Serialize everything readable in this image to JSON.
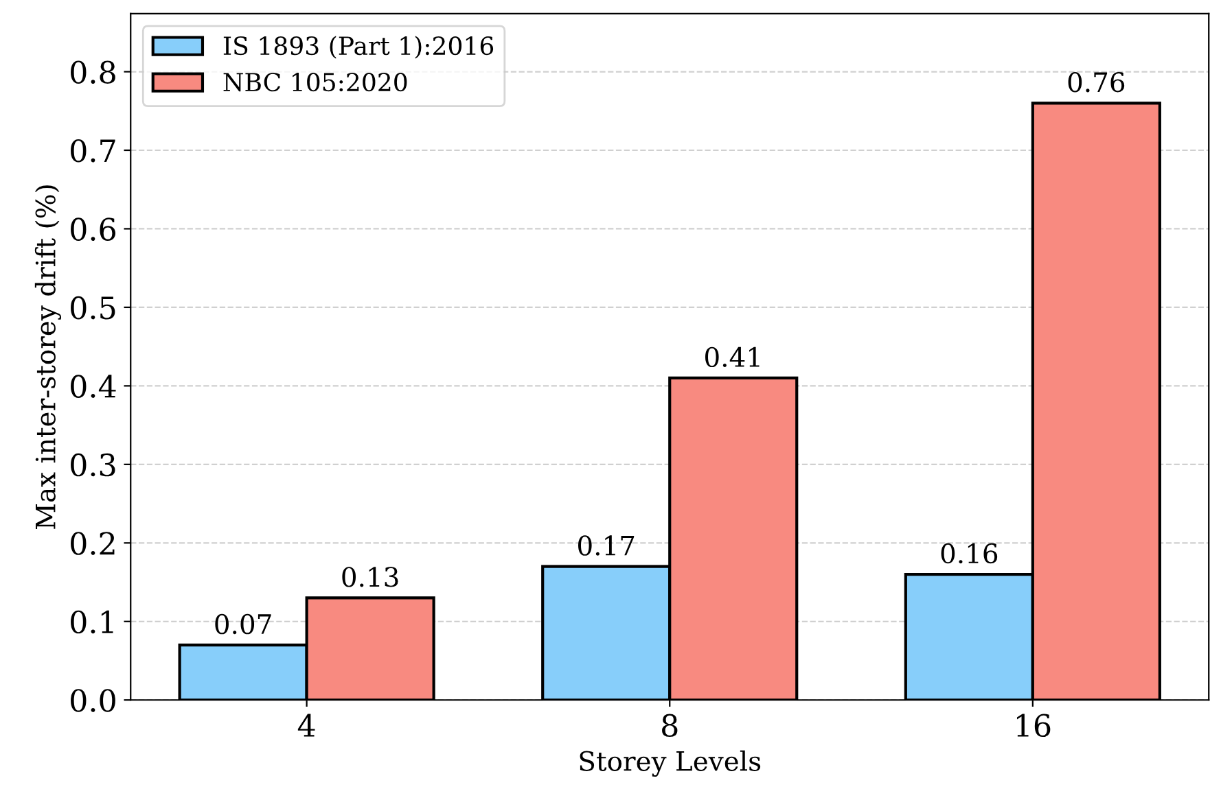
{
  "chart_data": {
    "type": "bar",
    "xlabel": "Storey Levels",
    "ylabel": "Max inter-storey drift (%)",
    "categories": [
      "4",
      "8",
      "16"
    ],
    "series": [
      {
        "name": "IS 1893 (Part 1):2016",
        "color": "#87cefa",
        "values": [
          0.07,
          0.17,
          0.16
        ]
      },
      {
        "name": "NBC 105:2020",
        "color": "#f88a80",
        "values": [
          0.13,
          0.41,
          0.76
        ]
      }
    ],
    "ylim": [
      0,
      0.874
    ],
    "yticks": [
      {
        "value": 0,
        "label": "0.0"
      },
      0.1,
      0.2,
      0.3,
      0.4,
      0.5,
      0.6,
      0.7,
      0.8
    ],
    "grid": "y",
    "legend": "top left",
    "data_labels": true
  }
}
